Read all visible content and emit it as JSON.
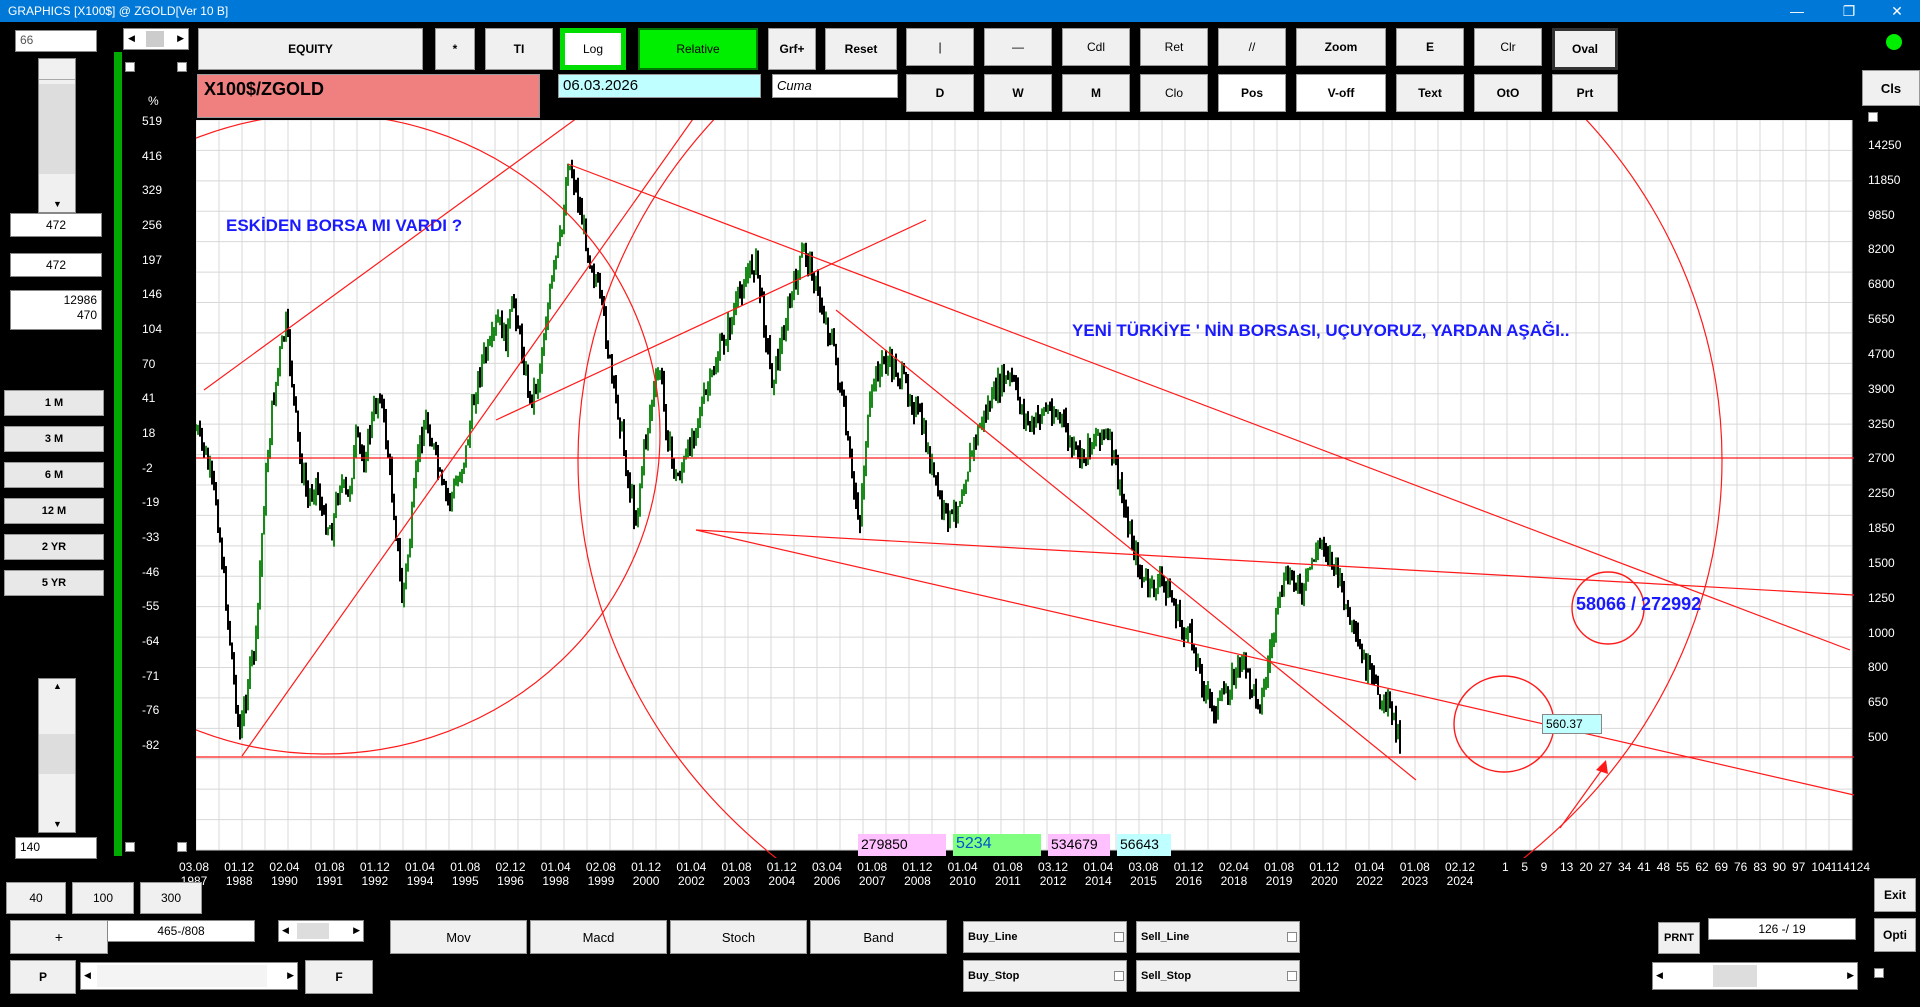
{
  "window": {
    "title": "GRAPHICS  [X100$] @ ZGOLD[Ver 10 B]"
  },
  "top_buttons": {
    "equity": "EQUITY",
    "star": "*",
    "ti": "TI",
    "log": "Log",
    "relative": "Relative",
    "grf": "Grf+",
    "reset": "Reset",
    "vline": "|",
    "hline": "—",
    "cdl": "Cdl",
    "ret": "Ret",
    "parallel": "//",
    "zoom": "Zoom",
    "e": "E",
    "clr": "Clr",
    "oval": "Oval",
    "d": "D",
    "w": "W",
    "m": "M",
    "clo": "Clo",
    "pos": "Pos",
    "voff": "V-off",
    "text": "Text",
    "oto": "OtO",
    "prt": "Prt",
    "cls": "Cls"
  },
  "symbol": "X100$/ZGOLD",
  "date_field": "06.03.2026",
  "day_field": "Cuma",
  "left_panel": {
    "top_input": "66",
    "value1": "472",
    "value2": "472",
    "value3_a": "12986",
    "value3_b": "470",
    "period_buttons": [
      "1 M",
      "3 M",
      "6 M",
      "12 M",
      "2 YR",
      "5 YR"
    ],
    "bottom_input": "140"
  },
  "bottom_controls": {
    "b40": "40",
    "b100": "100",
    "b300": "300",
    "plus": "+",
    "range": "465-/808",
    "p": "P",
    "f": "F",
    "mov": "Mov",
    "macd": "Macd",
    "stoch": "Stoch",
    "band": "Band",
    "buy_line": "Buy_Line",
    "sell_line": "Sell_Line",
    "buy_stop": "Buy_Stop",
    "sell_stop": "Sell_Stop",
    "prnt": "PRNT",
    "counter": "126  -/  19",
    "exit": "Exit",
    "opti": "Opti"
  },
  "chart": {
    "percent_label": "%",
    "left_axis": [
      "519",
      "416",
      "329",
      "256",
      "197",
      "146",
      "104",
      "70",
      "41",
      "18",
      "-2",
      "-19",
      "-33",
      "-46",
      "-55",
      "-64",
      "-71",
      "-76",
      "-82"
    ],
    "right_axis": [
      "14250",
      "11850",
      "9850",
      "8200",
      "6800",
      "5650",
      "4700",
      "3900",
      "3250",
      "2700",
      "2250",
      "1850",
      "1500",
      "1250",
      "1000",
      "800",
      "650",
      "500"
    ],
    "date_labels": [
      [
        "03.08",
        "1987"
      ],
      [
        "01.12",
        "1988"
      ],
      [
        "02.04",
        "1990"
      ],
      [
        "01.08",
        "1991"
      ],
      [
        "01.12",
        "1992"
      ],
      [
        "01.04",
        "1994"
      ],
      [
        "01.08",
        "1995"
      ],
      [
        "02.12",
        "1996"
      ],
      [
        "01.04",
        "1998"
      ],
      [
        "02.08",
        "1999"
      ],
      [
        "01.12",
        "2000"
      ],
      [
        "01.04",
        "2002"
      ],
      [
        "01.08",
        "2003"
      ],
      [
        "01.12",
        "2004"
      ],
      [
        "03.04",
        "2006"
      ],
      [
        "01.08",
        "2007"
      ],
      [
        "01.12",
        "2008"
      ],
      [
        "01.04",
        "2010"
      ],
      [
        "01.08",
        "2011"
      ],
      [
        "03.12",
        "2012"
      ],
      [
        "01.04",
        "2014"
      ],
      [
        "03.08",
        "2015"
      ],
      [
        "01.12",
        "2016"
      ],
      [
        "02.04",
        "2018"
      ],
      [
        "01.08",
        "2019"
      ],
      [
        "01.12",
        "2020"
      ],
      [
        "01.04",
        "2022"
      ],
      [
        "01.08",
        "2023"
      ],
      [
        "02.12",
        "2024"
      ]
    ],
    "future_labels": [
      "1",
      "5",
      "9",
      "13",
      "20",
      "27",
      "34",
      "41",
      "48",
      "55",
      "62",
      "69",
      "76",
      "83",
      "90",
      "97",
      "104",
      "114",
      "124"
    ],
    "annotation_1": "ESKİDEN BORSA MI VARDI ?",
    "annotation_2": "YENİ TÜRKİYE ' NİN BORSASI, UÇUYORUZ,  YARDAN AŞAĞI..",
    "target_label": "58066 / 272992",
    "price_tag": "560.37",
    "info_boxes": [
      "279850",
      "5234",
      "534679",
      "56643"
    ],
    "colors": {
      "line": "#ff1a1a",
      "annotation": "#1a1aff",
      "up_bar": "#1a8a1a",
      "down_bar": "#000000",
      "grid": "#d8d8d8",
      "frame": "#00aa00"
    }
  }
}
